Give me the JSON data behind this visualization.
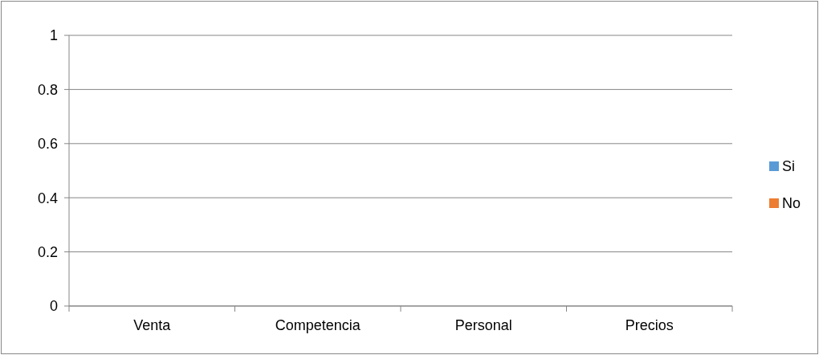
{
  "chart_data": {
    "type": "bar",
    "categories": [
      "Venta",
      "Competencia",
      "Personal",
      "Precios"
    ],
    "series": [
      {
        "name": "Si",
        "color": "#5b9bd5",
        "values": [
          0,
          0,
          0,
          0
        ]
      },
      {
        "name": "No",
        "color": "#ed7d31",
        "values": [
          0,
          0,
          0,
          0
        ]
      }
    ],
    "ylim": [
      0,
      1
    ],
    "yticks": [
      0,
      0.2,
      0.4,
      0.6,
      0.8,
      1
    ],
    "grid": "y",
    "legend": "right"
  }
}
